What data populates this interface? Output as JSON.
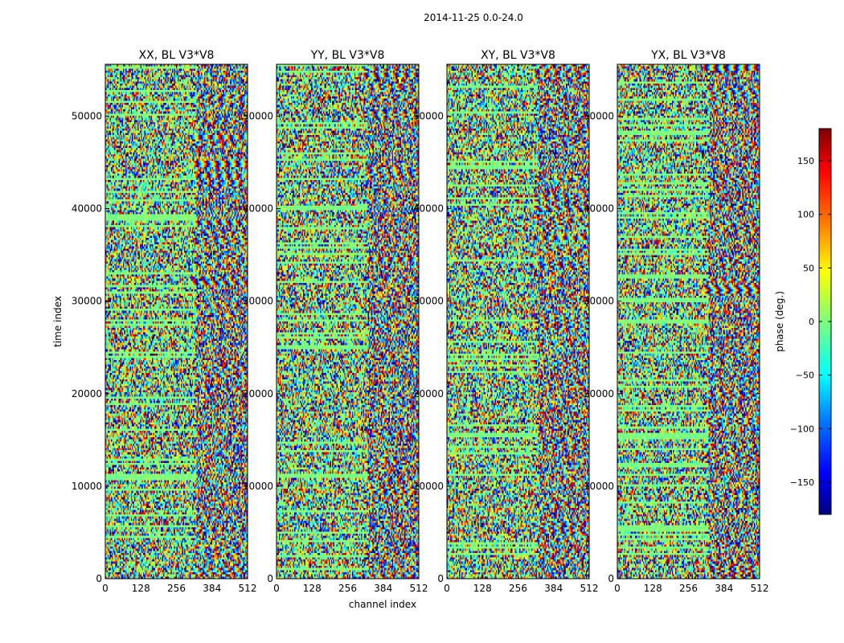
{
  "figure": {
    "suptitle": "2014-11-25 0.0-24.0"
  },
  "chart_data": {
    "type": "heatmap",
    "xlabel": "channel index",
    "ylabel": "time index",
    "xlim": [
      0,
      512
    ],
    "ylim": [
      0,
      55600
    ],
    "xticks": [
      "0",
      "128",
      "256",
      "384",
      "512"
    ],
    "yticks": [
      "0",
      "10000",
      "20000",
      "30000",
      "40000",
      "50000"
    ],
    "panels": [
      {
        "title": "XX, BL V3*V8"
      },
      {
        "title": "YY, BL V3*V8"
      },
      {
        "title": "XY, BL V3*V8"
      },
      {
        "title": "YX, BL V3*V8"
      }
    ],
    "colorbar": {
      "label": "phase (deg.)",
      "range": [
        -180,
        180
      ],
      "ticks": [
        "150",
        "100",
        "50",
        "0",
        "−50",
        "−100",
        "−150"
      ],
      "colormap": "jet",
      "colors": [
        "#00007f",
        "#0000ff",
        "#0080ff",
        "#00ffff",
        "#7dff7a",
        "#ffff00",
        "#ff8000",
        "#ff0000",
        "#7f0000"
      ]
    },
    "data_note": "phase values per (channel, time) are dense noise; not individually labeled"
  }
}
